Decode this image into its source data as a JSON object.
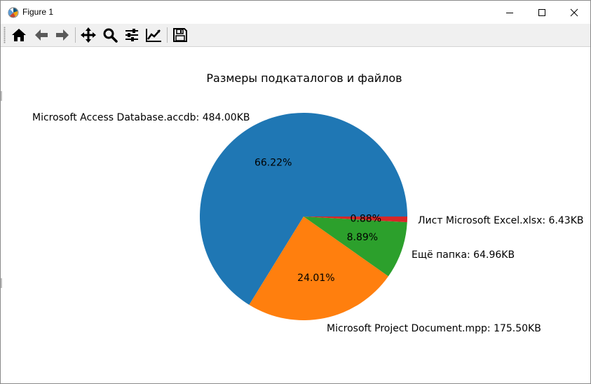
{
  "window": {
    "title": "Figure 1"
  },
  "titlebar_icons": [
    "matplotlib-logo-icon",
    "minimize-icon",
    "maximize-icon",
    "close-icon"
  ],
  "toolbar": {
    "buttons": [
      "home-icon",
      "back-arrow-icon",
      "forward-arrow-icon",
      "pan-move-icon",
      "zoom-magnifier-icon",
      "subplots-sliders-icon",
      "edit-axes-line-icon",
      "save-floppy-icon"
    ]
  },
  "chart_data": {
    "type": "pie",
    "title": "Размеры подкаталогов и файлов",
    "slices": [
      {
        "label": "Microsoft Access Database.accdb: 484.00KB",
        "pct_label": "66.22%",
        "value": 66.22,
        "color": "#1f77b4"
      },
      {
        "label": "Microsoft Project Document.mpp: 175.50KB",
        "pct_label": "24.01%",
        "value": 24.01,
        "color": "#ff7f0e"
      },
      {
        "label": "Ещё папка: 64.96KB",
        "pct_label": "8.89%",
        "value": 8.89,
        "color": "#2ca02c"
      },
      {
        "label": "Лист Microsoft Excel.xlsx: 6.43KB",
        "pct_label": "0.88%",
        "value": 0.88,
        "color": "#d62728"
      }
    ],
    "start_direction": "right",
    "direction": "counterclockwise",
    "legend": "none"
  }
}
